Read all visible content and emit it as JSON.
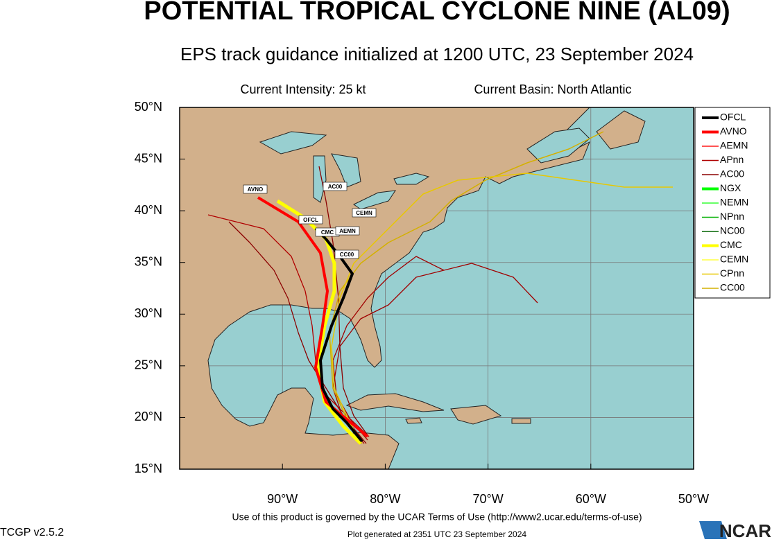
{
  "header": {
    "title": "POTENTIAL TROPICAL CYCLONE NINE (AL09)",
    "subtitle": "EPS track guidance initialized at 1200 UTC, 23 September 2024",
    "intensity": "Current Intensity: 25 kt",
    "basin": "Current Basin: North Atlantic"
  },
  "map": {
    "lon_range": [
      -100,
      -50
    ],
    "lat_range": [
      15,
      50
    ],
    "lat_ticks": [
      {
        "value": 15,
        "label": "15°N"
      },
      {
        "value": 20,
        "label": "20°N"
      },
      {
        "value": 25,
        "label": "25°N"
      },
      {
        "value": 30,
        "label": "30°N"
      },
      {
        "value": 35,
        "label": "35°N"
      },
      {
        "value": 40,
        "label": "40°N"
      },
      {
        "value": 45,
        "label": "45°N"
      },
      {
        "value": 50,
        "label": "50°N"
      }
    ],
    "lon_ticks": [
      {
        "value": -90,
        "label": "90°W"
      },
      {
        "value": -80,
        "label": "80°W"
      },
      {
        "value": -70,
        "label": "70°W"
      },
      {
        "value": -60,
        "label": "60°W"
      },
      {
        "value": -50,
        "label": "50°W"
      }
    ],
    "track_labels": [
      "AVNO",
      "AC00",
      "CEMN",
      "OFCL",
      "CMC",
      "AEMN",
      "CC00"
    ]
  },
  "legend": [
    {
      "name": "OFCL",
      "color": "#000000"
    },
    {
      "name": "AVNO",
      "color": "#ff0000"
    },
    {
      "name": "AEMN",
      "color": "#ff1a1a"
    },
    {
      "name": "APnn",
      "color": "#b00000"
    },
    {
      "name": "AC00",
      "color": "#8b0000"
    },
    {
      "name": "NGX",
      "color": "#00ff00"
    },
    {
      "name": "NEMN",
      "color": "#33ff33"
    },
    {
      "name": "NPnn",
      "color": "#00b000"
    },
    {
      "name": "NC00",
      "color": "#006400"
    },
    {
      "name": "CMC",
      "color": "#ffff00"
    },
    {
      "name": "CEMN",
      "color": "#ffff40"
    },
    {
      "name": "CPnn",
      "color": "#e8c800"
    },
    {
      "name": "CC00",
      "color": "#d4b000"
    }
  ],
  "footer": {
    "terms": "Use of this product is governed by the UCAR Terms of Use (http://www2.ucar.edu/terms-of-use)",
    "version": "TCGP v2.5.2",
    "generated": "Plot generated at 2351 UTC   23 September 2024",
    "logo": "NCAR"
  }
}
